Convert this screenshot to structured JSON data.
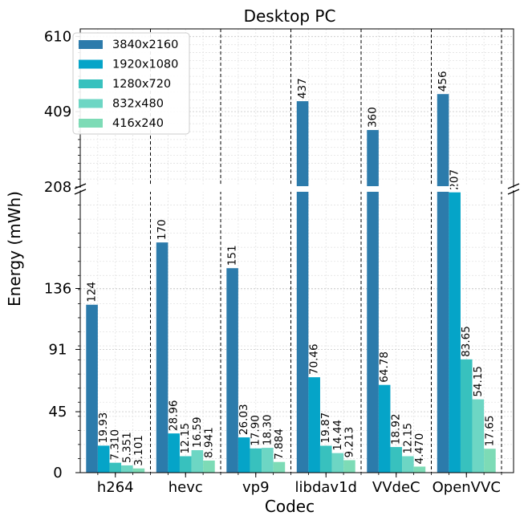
{
  "chart_data": {
    "type": "bar",
    "title": "Desktop PC",
    "xlabel": "Codec",
    "ylabel": "Energy (mWh)",
    "categories": [
      "h264",
      "hevc",
      "vp9",
      "libdav1d",
      "VVdeC",
      "OpenVVC"
    ],
    "series": [
      {
        "name": "3840x2160",
        "color": "#2c7bab",
        "values": [
          124,
          170,
          151,
          437,
          360,
          456
        ],
        "labels": [
          "124",
          "170",
          "151",
          "437",
          "360",
          "456"
        ]
      },
      {
        "name": "1920x1080",
        "color": "#05a4c8",
        "values": [
          19.93,
          28.96,
          26.03,
          70.46,
          64.78,
          207
        ],
        "labels": [
          "19.93",
          "28.96",
          "26.03",
          "70.46",
          "64.78",
          "207"
        ]
      },
      {
        "name": "1280x720",
        "color": "#38c1be",
        "values": [
          7.31,
          12.15,
          17.9,
          19.87,
          18.92,
          83.65
        ],
        "labels": [
          "7.310",
          "12.15",
          "17.90",
          "19.87",
          "18.92",
          "83.65"
        ]
      },
      {
        "name": "832x480",
        "color": "#6dd6c4",
        "values": [
          5.351,
          16.59,
          18.3,
          14.44,
          12.15,
          54.15
        ],
        "labels": [
          "5.351",
          "16.59",
          "18.30",
          "14.44",
          "12.15",
          "54.15"
        ]
      },
      {
        "name": "416x240",
        "color": "#7ddbb6",
        "values": [
          3.101,
          8.941,
          7.884,
          9.213,
          4.47,
          17.65
        ],
        "labels": [
          "3.101",
          "8.941",
          "7.884",
          "9.213",
          "4.470",
          "17.65"
        ]
      }
    ],
    "y_break": true,
    "lower_ylim": [
      0,
      208
    ],
    "upper_ylim": [
      208,
      630
    ],
    "lower_yticks": [
      0,
      45,
      91,
      136
    ],
    "upper_yticks": [
      208,
      409,
      610
    ],
    "grid": true,
    "legend_position": "upper left"
  }
}
